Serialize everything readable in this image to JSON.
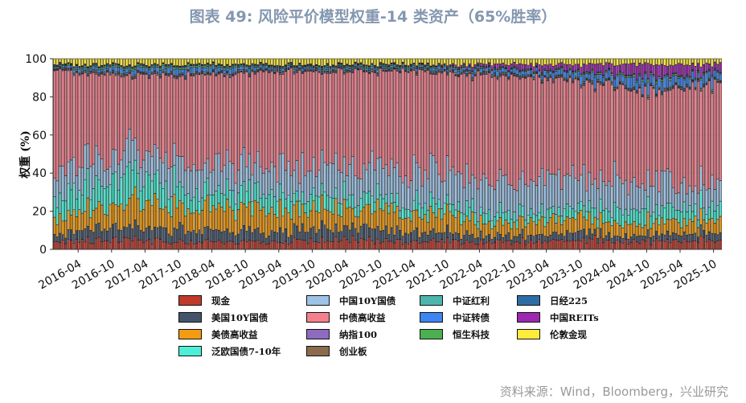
{
  "header": {
    "title": "图表 49: 风险平价模型权重-14 类资产（65%胜率）"
  },
  "footer": {
    "source": "资料来源：Wind，Bloomberg，兴业研究"
  },
  "chart_data": {
    "type": "bar",
    "stacked": true,
    "title": "图表 49: 风险平价模型权重-14 类资产（65%胜率）",
    "xlabel": "",
    "ylabel": "权重 (%)",
    "ylim": [
      0,
      100
    ],
    "yticks": [
      0,
      20,
      40,
      60,
      80,
      100
    ],
    "grid": "horizontal",
    "legend_position": "bottom",
    "x_start": "2015-12",
    "x_end": "2025-11",
    "x_frequency": "biweekly",
    "x_tick_labels": [
      "2016-04",
      "2016-10",
      "2017-04",
      "2017-10",
      "2018-04",
      "2018-10",
      "2019-04",
      "2019-10",
      "2020-04",
      "2020-10",
      "2021-04",
      "2021-10",
      "2022-04",
      "2022-10",
      "2023-04",
      "2023-10",
      "2024-04",
      "2024-10",
      "2025-04",
      "2025-10"
    ],
    "series": [
      {
        "name": "现金",
        "color": "#C0392B",
        "values": [
          4,
          5,
          4,
          4,
          5,
          4,
          4,
          5,
          4,
          5
        ]
      },
      {
        "name": "美国10Y国债",
        "color": "#44546A",
        "values": [
          4,
          7,
          6,
          5,
          7,
          5,
          3,
          4,
          3,
          4
        ]
      },
      {
        "name": "美债高收益",
        "color": "#F39C12",
        "values": [
          8,
          12,
          13,
          11,
          10,
          10,
          7,
          7,
          6,
          7
        ]
      },
      {
        "name": "泛欧国债7-10年",
        "color": "#4DEFD6",
        "values": [
          12,
          14,
          9,
          8,
          6,
          6,
          5,
          5,
          8,
          6
        ]
      },
      {
        "name": "中国10Y国债",
        "color": "#9DC3E6",
        "values": [
          15,
          12,
          14,
          15,
          15,
          16,
          17,
          16,
          13,
          13
        ]
      },
      {
        "name": "中债高收益",
        "color": "#F4808E",
        "values": [
          50,
          40,
          45,
          50,
          50,
          52,
          55,
          52,
          48,
          50
        ]
      },
      {
        "name": "纳指100",
        "color": "#8E6BBF",
        "values": [
          0.5,
          0.5,
          0.5,
          0.5,
          0.5,
          0.5,
          0.5,
          0.5,
          0.5,
          0.5
        ]
      },
      {
        "name": "创业板",
        "color": "#8B6A4E",
        "values": [
          0.5,
          0.5,
          0.5,
          0.5,
          0.5,
          0.5,
          0.5,
          0.5,
          0.5,
          0.5
        ]
      },
      {
        "name": "中证红利",
        "color": "#4DB6AC",
        "values": [
          0.5,
          0.5,
          0.5,
          0.5,
          0.5,
          0.5,
          0.5,
          0.5,
          0.5,
          0.5
        ]
      },
      {
        "name": "中证转债",
        "color": "#3D85F0",
        "values": [
          1,
          2,
          3,
          1,
          1,
          1,
          2,
          3,
          5,
          4
        ]
      },
      {
        "name": "恒生科技",
        "color": "#4CAF50",
        "values": [
          0.5,
          1,
          1,
          0.5,
          0.5,
          0.5,
          0.5,
          0.5,
          1,
          0.5
        ]
      },
      {
        "name": "日经225",
        "color": "#2E6DA4",
        "values": [
          0.5,
          0.5,
          0.5,
          0.5,
          0.5,
          0.5,
          0.5,
          0.5,
          0.5,
          0.5
        ]
      },
      {
        "name": "中国REITs",
        "color": "#9C27B0",
        "values": [
          0,
          0,
          0,
          0,
          0,
          0,
          2,
          3,
          6,
          4
        ]
      },
      {
        "name": "伦敦金现",
        "color": "#FFEB3B",
        "values": [
          3,
          3,
          3,
          3,
          3,
          3,
          3,
          3,
          3,
          3
        ]
      }
    ],
    "legend_order": [
      "现金",
      "中国10Y国债",
      "中证红利",
      "日经225",
      "美国10Y国债",
      "中债高收益",
      "中证转债",
      "中国REITs",
      "美债高收益",
      "纳指100",
      "恒生科技",
      "伦敦金现",
      "泛欧国债7-10年",
      "创业板"
    ]
  }
}
